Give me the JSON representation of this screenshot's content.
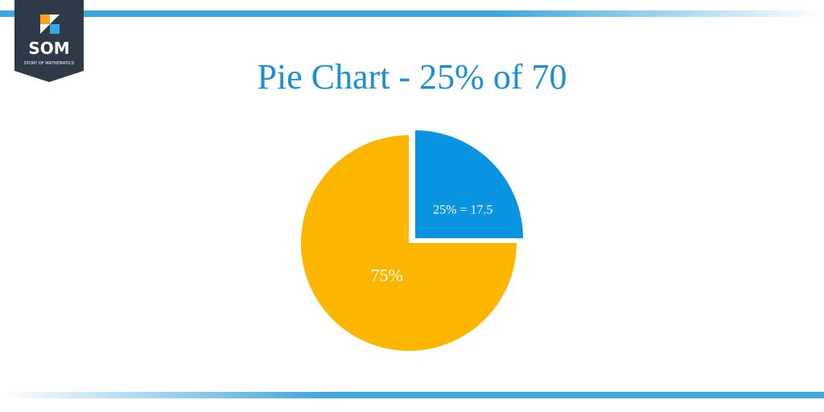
{
  "logo": {
    "name": "SOM",
    "tagline": "STORY OF MATHEMATICS"
  },
  "chart_data": {
    "type": "pie",
    "title": "Pie Chart - 25% of 70",
    "values": [
      25,
      75
    ],
    "value_labels": [
      "25% = 17.5",
      "75%"
    ],
    "colors": [
      "#0a93e0",
      "#fdb600"
    ]
  }
}
